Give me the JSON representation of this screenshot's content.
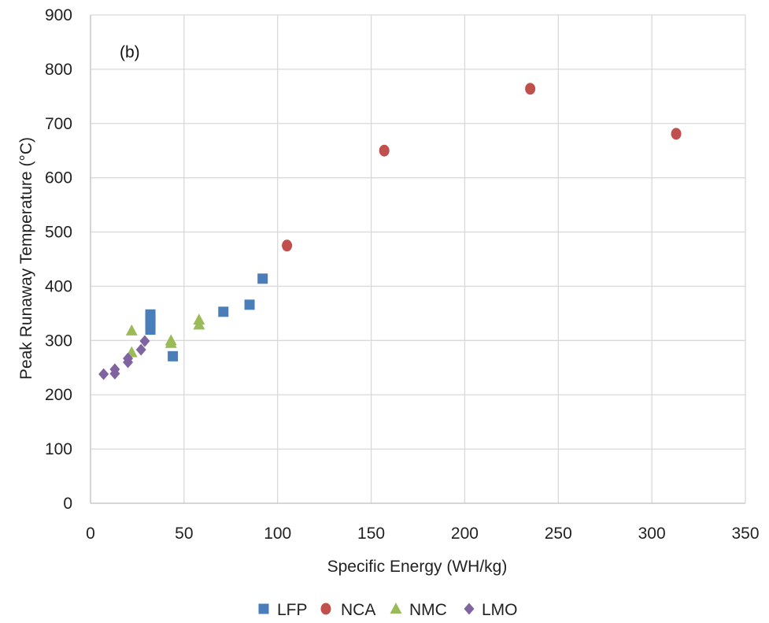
{
  "chart_data": {
    "type": "scatter",
    "annotation": "(b)",
    "xlabel": "Specific Energy (WH/kg)",
    "ylabel": "Peak Runaway Temperature (°C)",
    "xlim": [
      0,
      350
    ],
    "ylim": [
      0,
      900
    ],
    "xticks": [
      0,
      50,
      100,
      150,
      200,
      250,
      300,
      350
    ],
    "yticks": [
      0,
      100,
      200,
      300,
      400,
      500,
      600,
      700,
      800,
      900
    ],
    "grid": true,
    "legend_position": "bottom",
    "series": [
      {
        "name": "LFP",
        "marker": "square",
        "color": "#4a7ebb",
        "points": [
          [
            32,
            348
          ],
          [
            32,
            340
          ],
          [
            32,
            330
          ],
          [
            32,
            320
          ],
          [
            44,
            271
          ],
          [
            71,
            353
          ],
          [
            85,
            366
          ],
          [
            92,
            414
          ]
        ]
      },
      {
        "name": "NCA",
        "marker": "circle",
        "color": "#c0504d",
        "points": [
          [
            105,
            475
          ],
          [
            157,
            650
          ],
          [
            235,
            764
          ],
          [
            313,
            681
          ]
        ]
      },
      {
        "name": "NMC",
        "marker": "triangle",
        "color": "#9bbb59",
        "points": [
          [
            22,
            318
          ],
          [
            22,
            278
          ],
          [
            43,
            300
          ],
          [
            43,
            295
          ],
          [
            58,
            338
          ],
          [
            58,
            329
          ]
        ]
      },
      {
        "name": "LMO",
        "marker": "diamond",
        "color": "#8064a2",
        "points": [
          [
            7,
            238
          ],
          [
            13,
            247
          ],
          [
            13,
            239
          ],
          [
            20,
            267
          ],
          [
            20,
            260
          ],
          [
            27,
            283
          ],
          [
            29,
            299
          ]
        ]
      }
    ]
  }
}
